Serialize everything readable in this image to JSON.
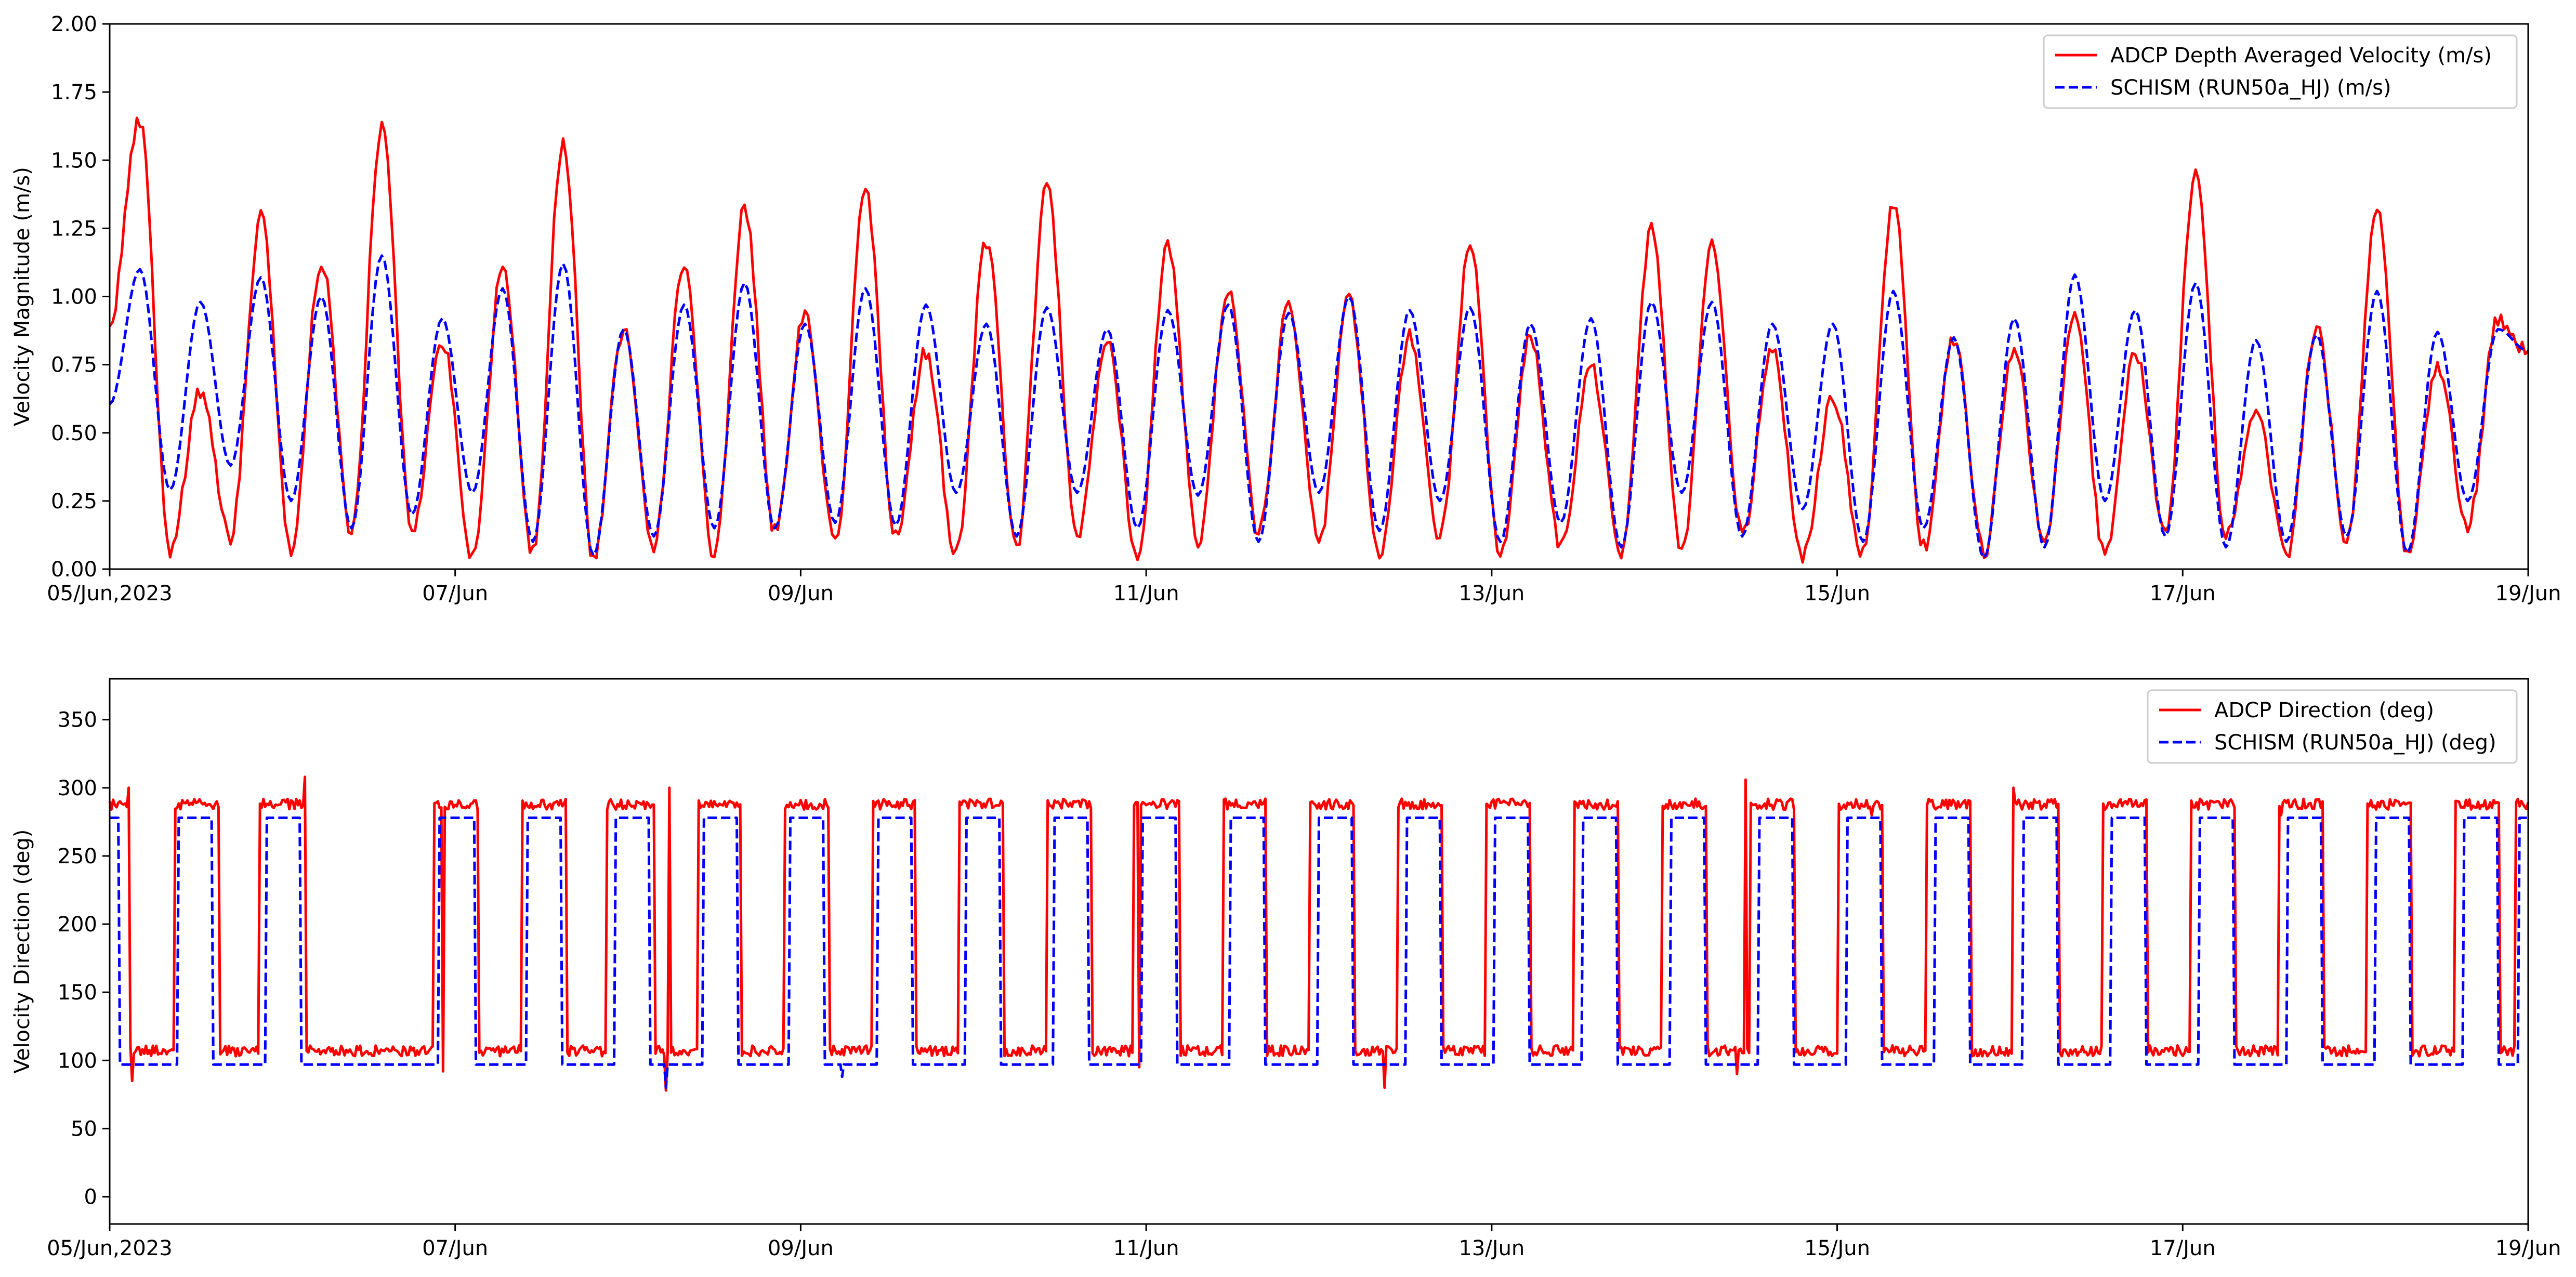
{
  "chart_data": [
    {
      "type": "line",
      "ylabel": "Velocity Magnitude (m/s)",
      "xlim": [
        "2023-06-05",
        "2023-06-19"
      ],
      "ylim": [
        0,
        2
      ],
      "xtick_labels": [
        "05/Jun,2023",
        "07/Jun",
        "09/Jun",
        "11/Jun",
        "13/Jun",
        "15/Jun",
        "17/Jun",
        "19/Jun"
      ],
      "ytick_labels": [
        "0.00",
        "0.25",
        "0.50",
        "0.75",
        "1.00",
        "1.25",
        "1.50",
        "1.75",
        "2.00"
      ],
      "grid": false,
      "legend_position": "top-right",
      "series": [
        {
          "name": "ADCP Depth Averaged Velocity (m/s)",
          "color": "#ff0000",
          "style": "solid",
          "peaks": [
            1.65,
            0.65,
            1.29,
            1.13,
            1.62,
            0.84,
            1.11,
            1.57,
            0.88,
            1.12,
            1.33,
            0.95,
            1.39,
            0.8,
            1.2,
            1.4,
            0.85,
            1.19,
            1.02,
            0.97,
            1.0,
            0.85,
            1.18,
            0.85,
            0.75,
            1.24,
            1.2,
            0.8,
            0.62,
            1.34,
            0.85,
            0.82,
            0.95,
            0.8,
            1.46,
            0.6,
            0.89,
            1.31,
            0.75,
            0.92
          ],
          "troughs": [
            0.07,
            0.12,
            0.07,
            0.14,
            0.15,
            0.05,
            0.06,
            0.04,
            0.09,
            0.05,
            0.14,
            0.1,
            0.12,
            0.05,
            0.08,
            0.12,
            0.05,
            0.1,
            0.13,
            0.1,
            0.06,
            0.12,
            0.05,
            0.08,
            0.05,
            0.06,
            0.13,
            0.05,
            0.05,
            0.08,
            0.06,
            0.1,
            0.05,
            0.13,
            0.12,
            0.05,
            0.1,
            0.06,
            0.16
          ]
        },
        {
          "name": "SCHISM (RUN50a_HJ) (m/s)",
          "color": "#0000ff",
          "style": "dashed",
          "peaks": [
            1.1,
            0.98,
            1.07,
            1.0,
            1.15,
            0.92,
            1.03,
            1.12,
            0.88,
            0.97,
            1.05,
            0.9,
            1.03,
            0.97,
            0.9,
            0.96,
            0.88,
            0.95,
            0.97,
            0.94,
            1.0,
            0.95,
            0.96,
            0.9,
            0.92,
            0.98,
            0.98,
            0.9,
            0.9,
            1.02,
            0.85,
            0.92,
            1.08,
            0.95,
            1.05,
            0.84,
            0.86,
            1.02,
            0.87,
            0.88
          ],
          "troughs": [
            0.29,
            0.38,
            0.25,
            0.15,
            0.2,
            0.28,
            0.1,
            0.05,
            0.12,
            0.15,
            0.15,
            0.17,
            0.16,
            0.28,
            0.12,
            0.28,
            0.15,
            0.27,
            0.1,
            0.28,
            0.14,
            0.25,
            0.1,
            0.17,
            0.08,
            0.28,
            0.12,
            0.22,
            0.1,
            0.15,
            0.04,
            0.08,
            0.25,
            0.12,
            0.08,
            0.1,
            0.12,
            0.06,
            0.25
          ]
        }
      ]
    },
    {
      "type": "line",
      "ylabel": "Velocity Direction (deg)",
      "xlim": [
        "2023-06-05",
        "2023-06-19"
      ],
      "ylim": [
        -20,
        380
      ],
      "xtick_labels": [
        "05/Jun,2023",
        "07/Jun",
        "09/Jun",
        "11/Jun",
        "13/Jun",
        "15/Jun",
        "17/Jun",
        "19/Jun"
      ],
      "ytick_labels": [
        "0",
        "50",
        "100",
        "150",
        "200",
        "250",
        "300",
        "350"
      ],
      "grid": false,
      "legend_position": "top-right",
      "series": [
        {
          "name": "ADCP Direction (deg)",
          "color": "#ff0000",
          "style": "solid",
          "high_level": 288,
          "low_level": 107,
          "high_intervals": [
            [
              0.0,
              0.1
            ],
            [
              0.38,
              0.64
            ],
            [
              0.87,
              1.13
            ],
            [
              1.88,
              2.13
            ],
            [
              2.38,
              2.64
            ],
            [
              2.87,
              3.15
            ],
            [
              3.4,
              3.65
            ],
            [
              3.9,
              4.16
            ],
            [
              4.41,
              4.66
            ],
            [
              4.91,
              5.17
            ],
            [
              5.42,
              5.68
            ],
            [
              5.92,
              6.19
            ],
            [
              6.44,
              6.69
            ],
            [
              6.94,
              7.2
            ],
            [
              7.45,
              7.71
            ],
            [
              7.96,
              8.22
            ],
            [
              8.47,
              8.73
            ],
            [
              8.98,
              9.24
            ],
            [
              9.49,
              9.75
            ],
            [
              10.0,
              10.26
            ],
            [
              10.51,
              10.77
            ],
            [
              11.02,
              11.28
            ],
            [
              11.53,
              11.79
            ],
            [
              12.04,
              12.3
            ],
            [
              12.55,
              12.81
            ],
            [
              13.06,
              13.32
            ],
            [
              13.57,
              13.83
            ],
            [
              13.92,
              14.0
            ]
          ],
          "spikes": [
            [
              0.13,
              85
            ],
            [
              0.11,
              300
            ],
            [
              1.13,
              308
            ],
            [
              1.93,
              92
            ],
            [
              3.22,
              78
            ],
            [
              3.24,
              300
            ],
            [
              5.96,
              95
            ],
            [
              7.38,
              80
            ],
            [
              9.42,
              90
            ],
            [
              9.47,
              306
            ],
            [
              10.2,
              280
            ],
            [
              11.02,
              300
            ],
            [
              12.57,
              280
            ]
          ]
        },
        {
          "name": "SCHISM (RUN50a_HJ) (deg)",
          "color": "#0000ff",
          "style": "dashed",
          "high_level": 278,
          "low_level": 97,
          "high_intervals": [
            [
              0.0,
              0.06
            ],
            [
              0.4,
              0.6
            ],
            [
              0.91,
              1.11
            ],
            [
              1.91,
              2.11
            ],
            [
              2.41,
              2.61
            ],
            [
              2.92,
              3.12
            ],
            [
              3.43,
              3.63
            ],
            [
              3.93,
              4.13
            ],
            [
              4.44,
              4.64
            ],
            [
              4.95,
              5.15
            ],
            [
              5.46,
              5.66
            ],
            [
              5.97,
              6.17
            ],
            [
              6.48,
              6.68
            ],
            [
              6.99,
              7.19
            ],
            [
              7.5,
              7.7
            ],
            [
              8.01,
              8.21
            ],
            [
              8.52,
              8.72
            ],
            [
              9.03,
              9.23
            ],
            [
              9.54,
              9.74
            ],
            [
              10.05,
              10.25
            ],
            [
              10.56,
              10.76
            ],
            [
              11.07,
              11.27
            ],
            [
              11.58,
              11.78
            ],
            [
              12.09,
              12.29
            ],
            [
              12.6,
              12.8
            ],
            [
              13.11,
              13.31
            ],
            [
              13.62,
              13.82
            ],
            [
              13.94,
              14.0
            ]
          ],
          "spikes": [
            [
              3.22,
              80
            ],
            [
              4.24,
              88
            ]
          ]
        }
      ]
    }
  ]
}
